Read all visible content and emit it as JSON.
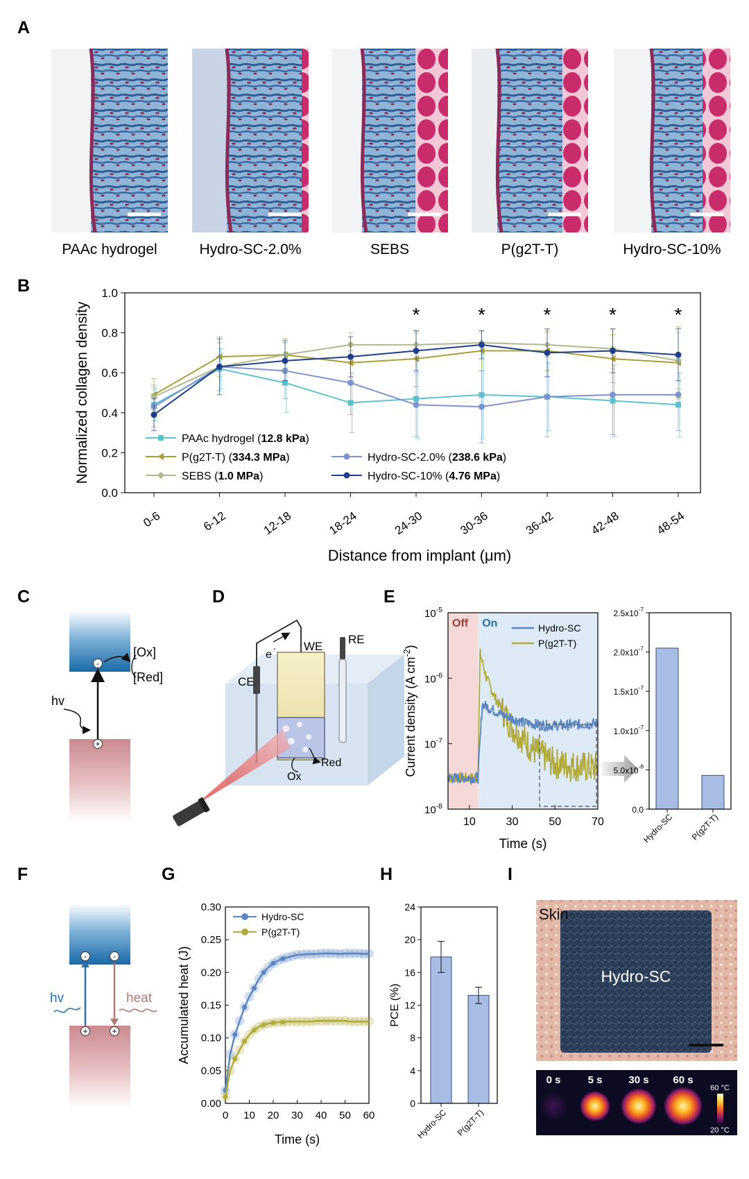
{
  "panel_letters": [
    "A",
    "B",
    "C",
    "D",
    "E",
    "F",
    "G",
    "H",
    "I"
  ],
  "panel_a": {
    "captions": [
      "PAAc hydrogel",
      "Hydro-SC-2.0%",
      "SEBS",
      "P(g2T-T)",
      "Hydro-SC-10%"
    ]
  },
  "panel_c": {
    "ox": "[Ox]",
    "red": "[Red]",
    "hv": "hv",
    "minus": "-",
    "plus": "+"
  },
  "panel_d": {
    "e": "e",
    "e_sup": "-",
    "we": "WE",
    "re": "RE",
    "ce": "CE",
    "ox": "Ox",
    "red": "Red"
  },
  "panel_f": {
    "hv": "hv",
    "heat": "heat",
    "minus": "-",
    "plus": "+"
  },
  "panel_i": {
    "skin_label": "Skin",
    "sample_label": "Hydro-SC",
    "times": [
      "0 s",
      "5 s",
      "30 s",
      "60 s"
    ],
    "scale_max": "60 °C",
    "scale_min": "20 °C"
  },
  "colors": {
    "paac": "#5cc3cc",
    "pg2tt": "#a7a035",
    "sebs": "#b2b88e",
    "hsc2": "#7d93cf",
    "hsc10": "#1f3f8c",
    "bar": "#a7bde3",
    "hydro_line": "#5b86c2",
    "pg_line": "#b0ab3a",
    "off_bg": "#f5d9d9",
    "on_bg": "#deeaf5"
  },
  "chart_data": [
    {
      "id": "B",
      "type": "line",
      "ylabel": "Normalized collagen density",
      "xlabel": "Distance from implant (μm)",
      "categories": [
        "0-6",
        "6-12",
        "12-18",
        "18-24",
        "24-30",
        "30-36",
        "36-42",
        "42-48",
        "48-54"
      ],
      "ylim": [
        0,
        1.0
      ],
      "yticks": [
        "0.0",
        "0.2",
        "0.4",
        "0.6",
        "0.8",
        "1.0"
      ],
      "significance": [
        "",
        "",
        "",
        "",
        "*",
        "*",
        "*",
        "*",
        "*"
      ],
      "series": [
        {
          "name": "PAAc hydrogel",
          "bold": "12.8 kPa",
          "color_key": "paac",
          "marker": "square",
          "values": [
            0.44,
            0.62,
            0.55,
            0.45,
            0.47,
            0.49,
            0.48,
            0.46,
            0.44
          ],
          "errors": [
            0.08,
            0.1,
            0.15,
            0.15,
            0.2,
            0.22,
            0.17,
            0.18,
            0.16
          ]
        },
        {
          "name": "P(g2T-T)",
          "bold": "334.3 MPa",
          "color_key": "pg2tt",
          "marker": "triangle",
          "values": [
            0.49,
            0.68,
            0.69,
            0.65,
            0.67,
            0.71,
            0.71,
            0.67,
            0.65
          ],
          "errors": [
            0.08,
            0.1,
            0.08,
            0.1,
            0.14,
            0.1,
            0.1,
            0.12,
            0.18
          ]
        },
        {
          "name": "Hydro-SC-2.0%",
          "bold": "238.6 kPa",
          "color_key": "hsc2",
          "marker": "circle",
          "values": [
            0.43,
            0.63,
            0.61,
            0.55,
            0.44,
            0.43,
            0.48,
            0.49,
            0.49
          ],
          "errors": [
            0.1,
            0.12,
            0.14,
            0.16,
            0.16,
            0.18,
            0.2,
            0.2,
            0.18
          ]
        },
        {
          "name": "SEBS",
          "bold": "1.0 MPa",
          "color_key": "sebs",
          "marker": "diamond",
          "values": [
            0.48,
            0.63,
            0.69,
            0.74,
            0.74,
            0.75,
            0.74,
            0.72,
            0.66
          ],
          "errors": [
            0.06,
            0.12,
            0.08,
            0.06,
            0.06,
            0.06,
            0.06,
            0.1,
            0.14
          ]
        },
        {
          "name": "Hydro-SC-10%",
          "bold": "4.76 MPa",
          "color_key": "hsc10",
          "marker": "circle",
          "values": [
            0.39,
            0.63,
            0.66,
            0.68,
            0.71,
            0.74,
            0.7,
            0.71,
            0.69
          ],
          "errors": [
            0.08,
            0.14,
            0.1,
            0.1,
            0.1,
            0.07,
            0.12,
            0.11,
            0.13
          ]
        }
      ]
    },
    {
      "id": "E-line",
      "type": "line",
      "ylabel": "Current density (A cm",
      "ylabel_sup": "-2",
      "ylabel_end": ")",
      "xlabel": "Time (s)",
      "yscale": "log",
      "ylim": [
        1e-08,
        1e-05
      ],
      "xlim": [
        0,
        70
      ],
      "xticks": [
        "10",
        "30",
        "50",
        "70"
      ],
      "ytick_base": [
        "10",
        "10",
        "10",
        "10"
      ],
      "ytick_exp": [
        "-8",
        "-7",
        "-6",
        "-5"
      ],
      "off_label": "Off",
      "on_label": "On",
      "light_on_time": 14,
      "series": [
        {
          "name": "Hydro-SC",
          "color_key": "hydro_line",
          "points": [
            [
              0,
              3e-08
            ],
            [
              14,
              3e-08
            ],
            [
              16,
              4e-07
            ],
            [
              25,
              2.8e-07
            ],
            [
              35,
              2.1e-07
            ],
            [
              45,
              1.9e-07
            ],
            [
              55,
              1.9e-07
            ],
            [
              70,
              2.05e-07
            ]
          ]
        },
        {
          "name": "P(g2T-T)",
          "color_key": "pg_line",
          "points": [
            [
              0,
              3e-08
            ],
            [
              14,
              3e-08
            ],
            [
              15,
              2.4e-06
            ],
            [
              18,
              1e-06
            ],
            [
              22,
              5e-07
            ],
            [
              30,
              1.8e-07
            ],
            [
              40,
              8e-08
            ],
            [
              50,
              5e-08
            ],
            [
              60,
              4.5e-08
            ],
            [
              70,
              4.2e-08
            ]
          ]
        }
      ]
    },
    {
      "id": "E-bar",
      "type": "bar",
      "categories": [
        "Hydro-SC",
        "P(g2T-T)"
      ],
      "values": [
        2.05e-07,
        4.3e-08
      ],
      "ylim": [
        0,
        2.5e-07
      ],
      "yticks": [
        "0.0",
        "5.0x10",
        "1.0x10",
        "1.5x10",
        "2.0x10",
        "2.5x10"
      ],
      "ytick_exp": [
        "",
        "-8",
        "-7",
        "-7",
        "-7",
        "-7"
      ]
    },
    {
      "id": "G",
      "type": "line",
      "ylabel": "Accumulated heat (J)",
      "xlabel": "Time (s)",
      "xlim": [
        0,
        60
      ],
      "ylim": [
        0,
        0.3
      ],
      "xticks": [
        "0",
        "10",
        "20",
        "30",
        "40",
        "50",
        "60"
      ],
      "yticks": [
        "0.00",
        "0.05",
        "0.10",
        "0.15",
        "0.20",
        "0.25",
        "0.30"
      ],
      "series": [
        {
          "name": "Hydro-SC",
          "color_key": "hydro_line",
          "x": [
            0,
            2,
            4,
            6,
            8,
            10,
            12,
            14,
            16,
            18,
            20,
            22,
            24,
            26,
            28,
            30,
            32,
            34,
            36,
            38,
            40,
            42,
            44,
            46,
            48,
            50,
            52,
            54,
            56,
            58,
            60
          ],
          "y": [
            0.02,
            0.075,
            0.105,
            0.126,
            0.147,
            0.163,
            0.176,
            0.19,
            0.2,
            0.208,
            0.214,
            0.218,
            0.221,
            0.223,
            0.225,
            0.227,
            0.227,
            0.228,
            0.228,
            0.228,
            0.229,
            0.229,
            0.229,
            0.229,
            0.228,
            0.229,
            0.229,
            0.229,
            0.229,
            0.228,
            0.229
          ]
        },
        {
          "name": "P(g2T-T)",
          "color_key": "pg_line",
          "x": [
            0,
            2,
            4,
            6,
            8,
            10,
            12,
            14,
            16,
            18,
            20,
            22,
            24,
            26,
            28,
            30,
            32,
            34,
            36,
            38,
            40,
            42,
            44,
            46,
            48,
            50,
            52,
            54,
            56,
            58,
            60
          ],
          "y": [
            0.01,
            0.05,
            0.068,
            0.082,
            0.095,
            0.105,
            0.112,
            0.117,
            0.12,
            0.122,
            0.123,
            0.124,
            0.124,
            0.125,
            0.125,
            0.125,
            0.125,
            0.125,
            0.125,
            0.126,
            0.126,
            0.126,
            0.126,
            0.126,
            0.126,
            0.126,
            0.125,
            0.125,
            0.125,
            0.125,
            0.125
          ]
        }
      ]
    },
    {
      "id": "H",
      "type": "bar",
      "ylabel": "PCE (%)",
      "categories": [
        "Hydro-SC",
        "P(g2T-T)"
      ],
      "values": [
        17.9,
        13.2
      ],
      "errors": [
        1.9,
        1.0
      ],
      "ylim": [
        0,
        24
      ],
      "yticks": [
        "0",
        "4",
        "8",
        "12",
        "16",
        "20",
        "24"
      ]
    }
  ]
}
